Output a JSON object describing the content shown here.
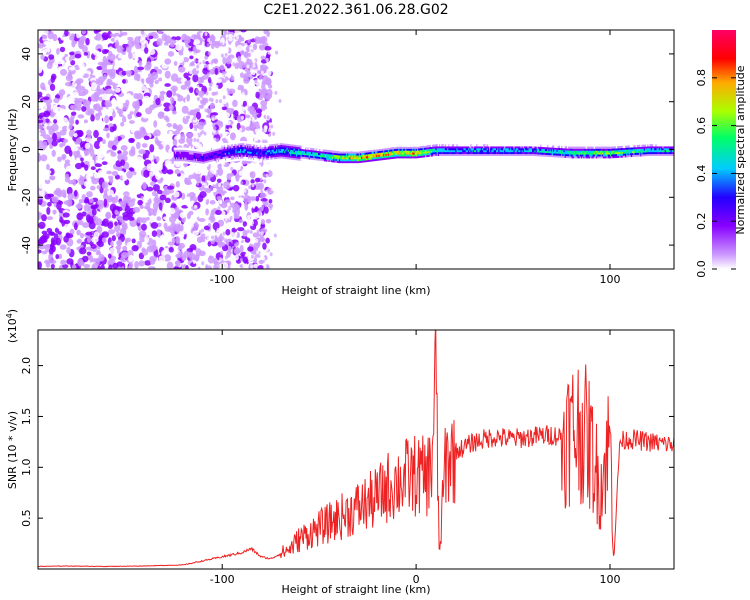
{
  "title": "C2E1.2022.361.06.28.G02",
  "chart_data": [
    {
      "type": "heatmap",
      "xlabel": "Height of straight line (km)",
      "ylabel": "Frequency (Hz)",
      "xlim": [
        -195,
        133
      ],
      "ylim": [
        -50,
        50
      ],
      "xticks": [
        -100,
        0,
        100
      ],
      "xtick_labels": [
        "-100",
        "",
        "100"
      ],
      "yticks": [
        -40,
        -20,
        0,
        20,
        40
      ],
      "ytick_labels": [
        "-40",
        "-20",
        "0",
        "20",
        "40"
      ],
      "colorbar": {
        "label": "Normalized spectral amplitude",
        "range": [
          0.0,
          1.0
        ],
        "ticks": [
          0.0,
          0.2,
          0.4,
          0.6,
          0.8
        ],
        "tick_labels": [
          "0.0",
          "0.2",
          "0.4",
          "0.6",
          "0.8"
        ],
        "colormap": [
          "#ffffff",
          "#cc99ff",
          "#8800ff",
          "#2200ff",
          "#00ccff",
          "#00ff66",
          "#aaff00",
          "#ffaa00",
          "#ff0000",
          "#ff0066"
        ]
      },
      "ridge": {
        "x": [
          -120,
          -110,
          -100,
          -90,
          -80,
          -70,
          -60,
          -50,
          -40,
          -30,
          -20,
          -10,
          0,
          10,
          20,
          40,
          60,
          80,
          100,
          120,
          133
        ],
        "freq": [
          -2,
          -3,
          -1,
          0,
          -1,
          0,
          -1,
          -2,
          -3,
          -3,
          -2,
          -1,
          -1,
          0,
          0,
          0,
          0,
          -1,
          -1,
          0,
          0
        ],
        "amplitude": [
          0.3,
          0.35,
          0.4,
          0.45,
          0.4,
          0.5,
          0.55,
          0.6,
          0.75,
          0.85,
          0.85,
          0.8,
          0.85,
          0.6,
          0.5,
          0.5,
          0.5,
          0.6,
          0.7,
          0.55,
          0.5
        ]
      }
    },
    {
      "type": "line",
      "xlabel": "Height of straight line (km)",
      "ylabel": "SNR (10 * v/v)",
      "y_multiplier": "(x10",
      "y_multiplier_exp": "4",
      "y_multiplier_close": ")",
      "xlim": [
        -195,
        133
      ],
      "ylim": [
        0,
        23500
      ],
      "xticks": [
        -100,
        0,
        100
      ],
      "xtick_labels": [
        "-100",
        "0",
        "100"
      ],
      "yticks": [
        5000,
        10000,
        15000,
        20000
      ],
      "ytick_labels": [
        "0.5",
        "1.0",
        "1.5",
        "2.0"
      ],
      "series": [
        {
          "color": "#ee2222",
          "x": [
            -195,
            -180,
            -160,
            -140,
            -120,
            -110,
            -100,
            -90,
            -85,
            -80,
            -75,
            -70,
            -65,
            -60,
            -55,
            -50,
            -45,
            -40,
            -35,
            -30,
            -25,
            -20,
            -15,
            -10,
            -5,
            0,
            5,
            8,
            10,
            12,
            15,
            20,
            25,
            30,
            40,
            50,
            60,
            70,
            75,
            80,
            85,
            90,
            95,
            100,
            102,
            105,
            110,
            120,
            133
          ],
          "y": [
            250,
            300,
            250,
            300,
            400,
            800,
            1200,
            1600,
            2000,
            1200,
            1000,
            1500,
            2000,
            3000,
            3500,
            4000,
            4500,
            5000,
            5500,
            6000,
            6500,
            7000,
            8000,
            8500,
            9000,
            9200,
            9000,
            10000,
            20000,
            1000,
            10500,
            11500,
            12000,
            12500,
            13000,
            12800,
            13000,
            13200,
            13000,
            13500,
            14000,
            12000,
            8000,
            13000,
            1000,
            12500,
            12800,
            12500,
            12200
          ]
        }
      ]
    }
  ]
}
